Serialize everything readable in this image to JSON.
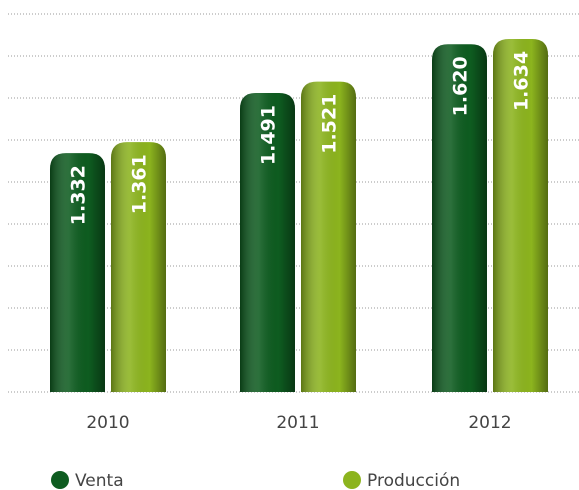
{
  "chart_data": {
    "type": "bar",
    "categories": [
      "2010",
      "2011",
      "2012"
    ],
    "series": [
      {
        "name": "Venta",
        "color": "#0e5c20",
        "values": [
          1332,
          1491,
          1620
        ],
        "value_labels": [
          "1.332",
          "1.491",
          "1.620"
        ]
      },
      {
        "name": "Producción",
        "color": "#8cb41e",
        "values": [
          1361,
          1521,
          1634
        ],
        "value_labels": [
          "1.361",
          "1.521",
          "1.634"
        ]
      }
    ],
    "ylim": [
      700,
      1700
    ]
  }
}
